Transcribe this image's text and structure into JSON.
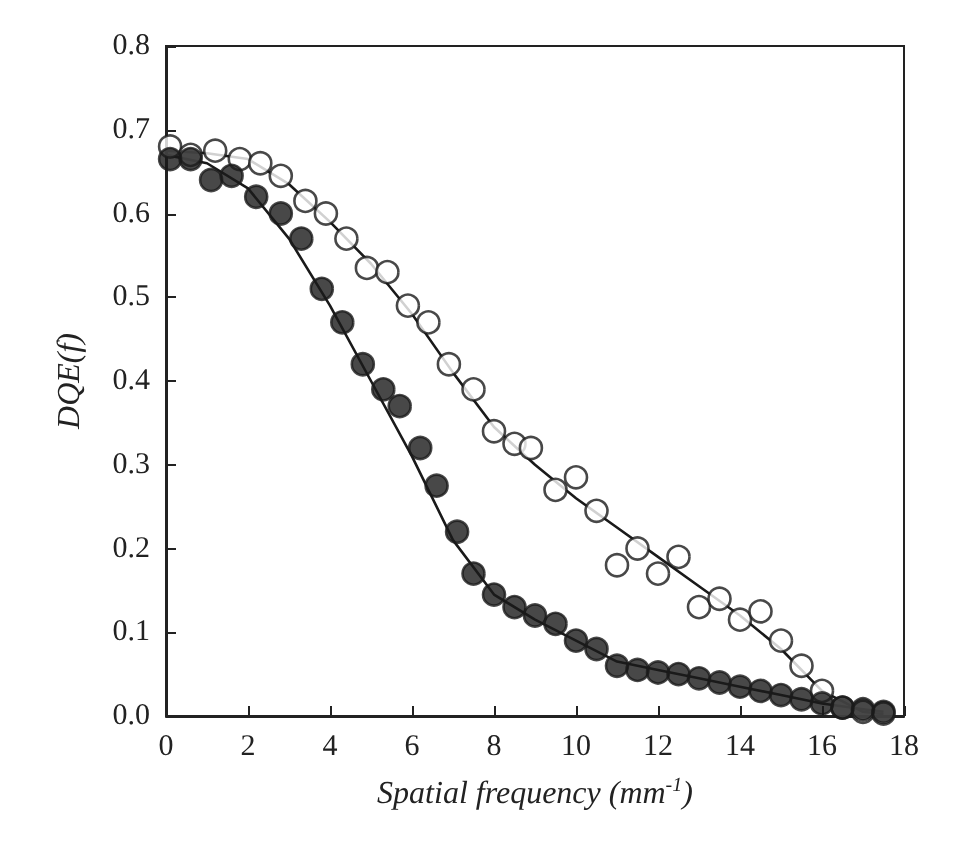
{
  "chart_data": {
    "type": "scatter",
    "xlabel": "Spatial frequency (mm$^{-1}$)",
    "ylabel": "DQE(f)",
    "xlim": [
      0,
      18
    ],
    "xticks": [
      0,
      2,
      4,
      6,
      8,
      10,
      12,
      14,
      16,
      18
    ],
    "ylim": [
      0,
      0.8
    ],
    "yticks": [
      {
        "value": 0,
        "label": "0.0"
      },
      {
        "value": 0.1,
        "label": "0.1"
      },
      {
        "value": 0.2,
        "label": "0.2"
      },
      {
        "value": 0.3,
        "label": "0.3"
      },
      {
        "value": 0.4,
        "label": "0.4"
      },
      {
        "value": 0.5,
        "label": "0.5"
      },
      {
        "value": 0.6,
        "label": "0.6"
      },
      {
        "value": 0.7,
        "label": "0.7"
      },
      {
        "value": 0.8,
        "label": "0.8"
      }
    ],
    "grid": false,
    "series": [
      {
        "marker": "circle",
        "color": "#ffffff",
        "x": [
          0.1,
          0.6,
          1.2,
          1.8,
          2.3,
          2.8,
          3.4,
          3.9,
          4.4,
          4.9,
          5.4,
          5.9,
          6.4,
          6.9,
          7.5,
          8.0,
          8.5,
          8.9,
          9.5,
          10.0,
          10.5,
          11.0,
          11.5,
          12.0,
          12.5,
          13.0,
          13.5,
          14.0,
          14.5,
          15.0,
          15.5,
          16.0,
          16.5,
          17.0,
          17.5
        ],
        "values": [
          0.68,
          0.67,
          0.675,
          0.665,
          0.66,
          0.645,
          0.615,
          0.6,
          0.57,
          0.535,
          0.53,
          0.49,
          0.47,
          0.42,
          0.39,
          0.34,
          0.325,
          0.32,
          0.27,
          0.285,
          0.245,
          0.18,
          0.2,
          0.17,
          0.19,
          0.13,
          0.14,
          0.115,
          0.125,
          0.09,
          0.06,
          0.03,
          0.01,
          0.005,
          0.003
        ]
      },
      {
        "marker": "circle",
        "color": "#1a1a1a",
        "x": [
          0.1,
          0.6,
          1.1,
          1.6,
          2.2,
          2.8,
          3.3,
          3.8,
          4.3,
          4.8,
          5.3,
          5.7,
          6.2,
          6.6,
          7.1,
          7.5,
          8.0,
          8.5,
          9.0,
          9.5,
          10.0,
          10.5,
          11.0,
          11.5,
          12.0,
          12.5,
          13.0,
          13.5,
          14.0,
          14.5,
          15.0,
          15.5,
          16.0,
          16.5,
          17.0,
          17.5
        ],
        "values": [
          0.665,
          0.665,
          0.64,
          0.645,
          0.62,
          0.6,
          0.57,
          0.51,
          0.47,
          0.42,
          0.39,
          0.37,
          0.32,
          0.275,
          0.22,
          0.17,
          0.145,
          0.13,
          0.12,
          0.11,
          0.09,
          0.08,
          0.06,
          0.055,
          0.052,
          0.05,
          0.045,
          0.04,
          0.035,
          0.03,
          0.025,
          0.02,
          0.015,
          0.01,
          0.008,
          0.005
        ]
      },
      {
        "type": "line",
        "marker": "none",
        "line_style": "solid",
        "color": "#1a1a1a",
        "x": [
          0,
          1,
          2,
          3,
          4,
          5,
          6,
          7,
          8,
          9,
          10,
          11,
          12,
          13,
          14,
          15,
          16,
          17,
          17.5
        ],
        "values": [
          0.675,
          0.672,
          0.665,
          0.635,
          0.59,
          0.54,
          0.48,
          0.41,
          0.345,
          0.3,
          0.26,
          0.225,
          0.19,
          0.155,
          0.12,
          0.08,
          0.03,
          0.005,
          0.002
        ]
      },
      {
        "type": "line",
        "marker": "none",
        "line_style": "solid",
        "color": "#1a1a1a",
        "x": [
          0,
          1,
          2,
          3,
          4,
          5,
          6,
          7,
          8,
          9,
          10,
          11,
          12,
          13,
          14,
          15,
          16,
          17,
          17.5
        ],
        "values": [
          0.67,
          0.66,
          0.63,
          0.57,
          0.49,
          0.4,
          0.31,
          0.21,
          0.145,
          0.115,
          0.09,
          0.065,
          0.055,
          0.045,
          0.035,
          0.025,
          0.015,
          0.008,
          0.005
        ]
      }
    ]
  }
}
